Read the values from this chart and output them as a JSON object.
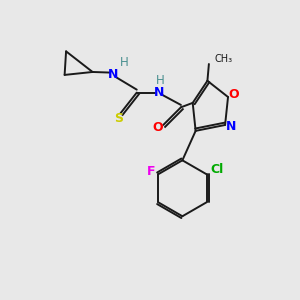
{
  "background_color": "#e8e8e8",
  "bond_color": "#1a1a1a",
  "atom_colors": {
    "N": "#0000ff",
    "O": "#ff0000",
    "S": "#cccc00",
    "F": "#ee00ee",
    "Cl": "#00aa00",
    "H": "#4a9090",
    "C": "#1a1a1a"
  },
  "figsize": [
    3.0,
    3.0
  ],
  "dpi": 100
}
